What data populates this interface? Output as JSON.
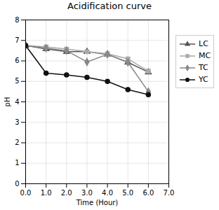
{
  "chart_data": {
    "type": "line",
    "title": "Acidification curve",
    "xlabel": "Time (Hour)",
    "ylabel": "pH",
    "x": [
      0,
      1,
      2,
      3,
      4,
      5,
      6
    ],
    "series": [
      {
        "name": "LC",
        "color": "#555555",
        "marker": "triangle",
        "values": [
          6.75,
          6.58,
          6.45,
          6.45,
          6.32,
          5.93,
          5.45
        ]
      },
      {
        "name": "MC",
        "color": "#aaaaaa",
        "marker": "square",
        "values": [
          6.75,
          6.68,
          6.58,
          6.45,
          6.35,
          6.1,
          5.5
        ]
      },
      {
        "name": "TC",
        "color": "#888888",
        "marker": "diamond",
        "values": [
          6.75,
          6.62,
          6.5,
          5.95,
          6.32,
          5.93,
          4.5
        ]
      },
      {
        "name": "YC",
        "color": "#111111",
        "marker": "circle",
        "values": [
          6.75,
          5.4,
          5.32,
          5.2,
          5.0,
          4.6,
          4.35
        ]
      }
    ],
    "xlim": [
      0,
      7
    ],
    "ylim": [
      0,
      8
    ],
    "xticks": [
      0,
      1,
      2,
      3,
      4,
      5,
      6,
      7
    ],
    "yticks": [
      0,
      1,
      2,
      3,
      4,
      5,
      6,
      7,
      8
    ],
    "grid": true,
    "legend": "right"
  }
}
